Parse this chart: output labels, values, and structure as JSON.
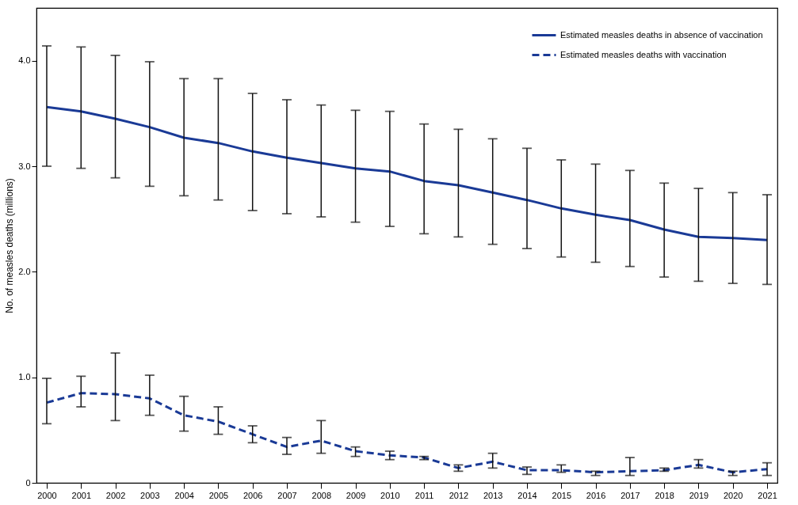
{
  "chart_data": {
    "type": "line",
    "ylabel": "No. of measles deaths (millions)",
    "categories": [
      "2000",
      "2001",
      "2002",
      "2003",
      "2004",
      "2005",
      "2006",
      "2007",
      "2008",
      "2009",
      "2010",
      "2011",
      "2012",
      "2013",
      "2014",
      "2015",
      "2016",
      "2017",
      "2018",
      "2019",
      "2020",
      "2021"
    ],
    "series": [
      {
        "name": "Estimated measles deaths in absence of vaccination",
        "color": "#1a3a96",
        "line_style": "solid",
        "values": [
          3.56,
          3.52,
          3.45,
          3.37,
          3.27,
          3.22,
          3.14,
          3.08,
          3.03,
          2.98,
          2.95,
          2.86,
          2.82,
          2.75,
          2.68,
          2.6,
          2.54,
          2.49,
          2.4,
          2.33,
          2.32,
          2.3
        ],
        "errors": [
          [
            3.0,
            4.14
          ],
          [
            2.98,
            4.13
          ],
          [
            2.89,
            4.05
          ],
          [
            2.81,
            3.99
          ],
          [
            2.72,
            3.83
          ],
          [
            2.68,
            3.83
          ],
          [
            2.58,
            3.69
          ],
          [
            2.55,
            3.63
          ],
          [
            2.52,
            3.58
          ],
          [
            2.47,
            3.53
          ],
          [
            2.43,
            3.52
          ],
          [
            2.36,
            3.4
          ],
          [
            2.33,
            3.35
          ],
          [
            2.26,
            3.26
          ],
          [
            2.22,
            3.17
          ],
          [
            2.14,
            3.06
          ],
          [
            2.09,
            3.02
          ],
          [
            2.05,
            2.96
          ],
          [
            1.95,
            2.84
          ],
          [
            1.91,
            2.79
          ],
          [
            1.89,
            2.75
          ],
          [
            1.88,
            2.73
          ]
        ]
      },
      {
        "name": "Estimated measles deaths with vaccination",
        "color": "#1a3a96",
        "line_style": "dashed",
        "values": [
          0.76,
          0.85,
          0.84,
          0.8,
          0.64,
          0.58,
          0.46,
          0.34,
          0.4,
          0.3,
          0.26,
          0.24,
          0.14,
          0.2,
          0.12,
          0.12,
          0.1,
          0.11,
          0.12,
          0.17,
          0.1,
          0.13
        ],
        "errors": [
          [
            0.56,
            0.99
          ],
          [
            0.72,
            1.01
          ],
          [
            0.59,
            1.23
          ],
          [
            0.64,
            1.02
          ],
          [
            0.49,
            0.82
          ],
          [
            0.46,
            0.72
          ],
          [
            0.38,
            0.54
          ],
          [
            0.27,
            0.43
          ],
          [
            0.28,
            0.59
          ],
          [
            0.25,
            0.34
          ],
          [
            0.22,
            0.3
          ],
          [
            0.22,
            0.25
          ],
          [
            0.11,
            0.17
          ],
          [
            0.14,
            0.28
          ],
          [
            0.08,
            0.15
          ],
          [
            0.1,
            0.17
          ],
          [
            0.07,
            0.11
          ],
          [
            0.07,
            0.24
          ],
          [
            0.11,
            0.14
          ],
          [
            0.14,
            0.22
          ],
          [
            0.07,
            0.11
          ],
          [
            0.07,
            0.19
          ]
        ]
      }
    ],
    "ylim": [
      0,
      4.5
    ],
    "yticks": [
      0,
      {
        "value": 1,
        "label": "1.0"
      },
      {
        "value": 2,
        "label": "2.0"
      },
      {
        "value": 3,
        "label": "3.0"
      },
      {
        "value": 4,
        "label": "4.0"
      }
    ],
    "grid": false,
    "legend": "top right",
    "marker": "none"
  }
}
